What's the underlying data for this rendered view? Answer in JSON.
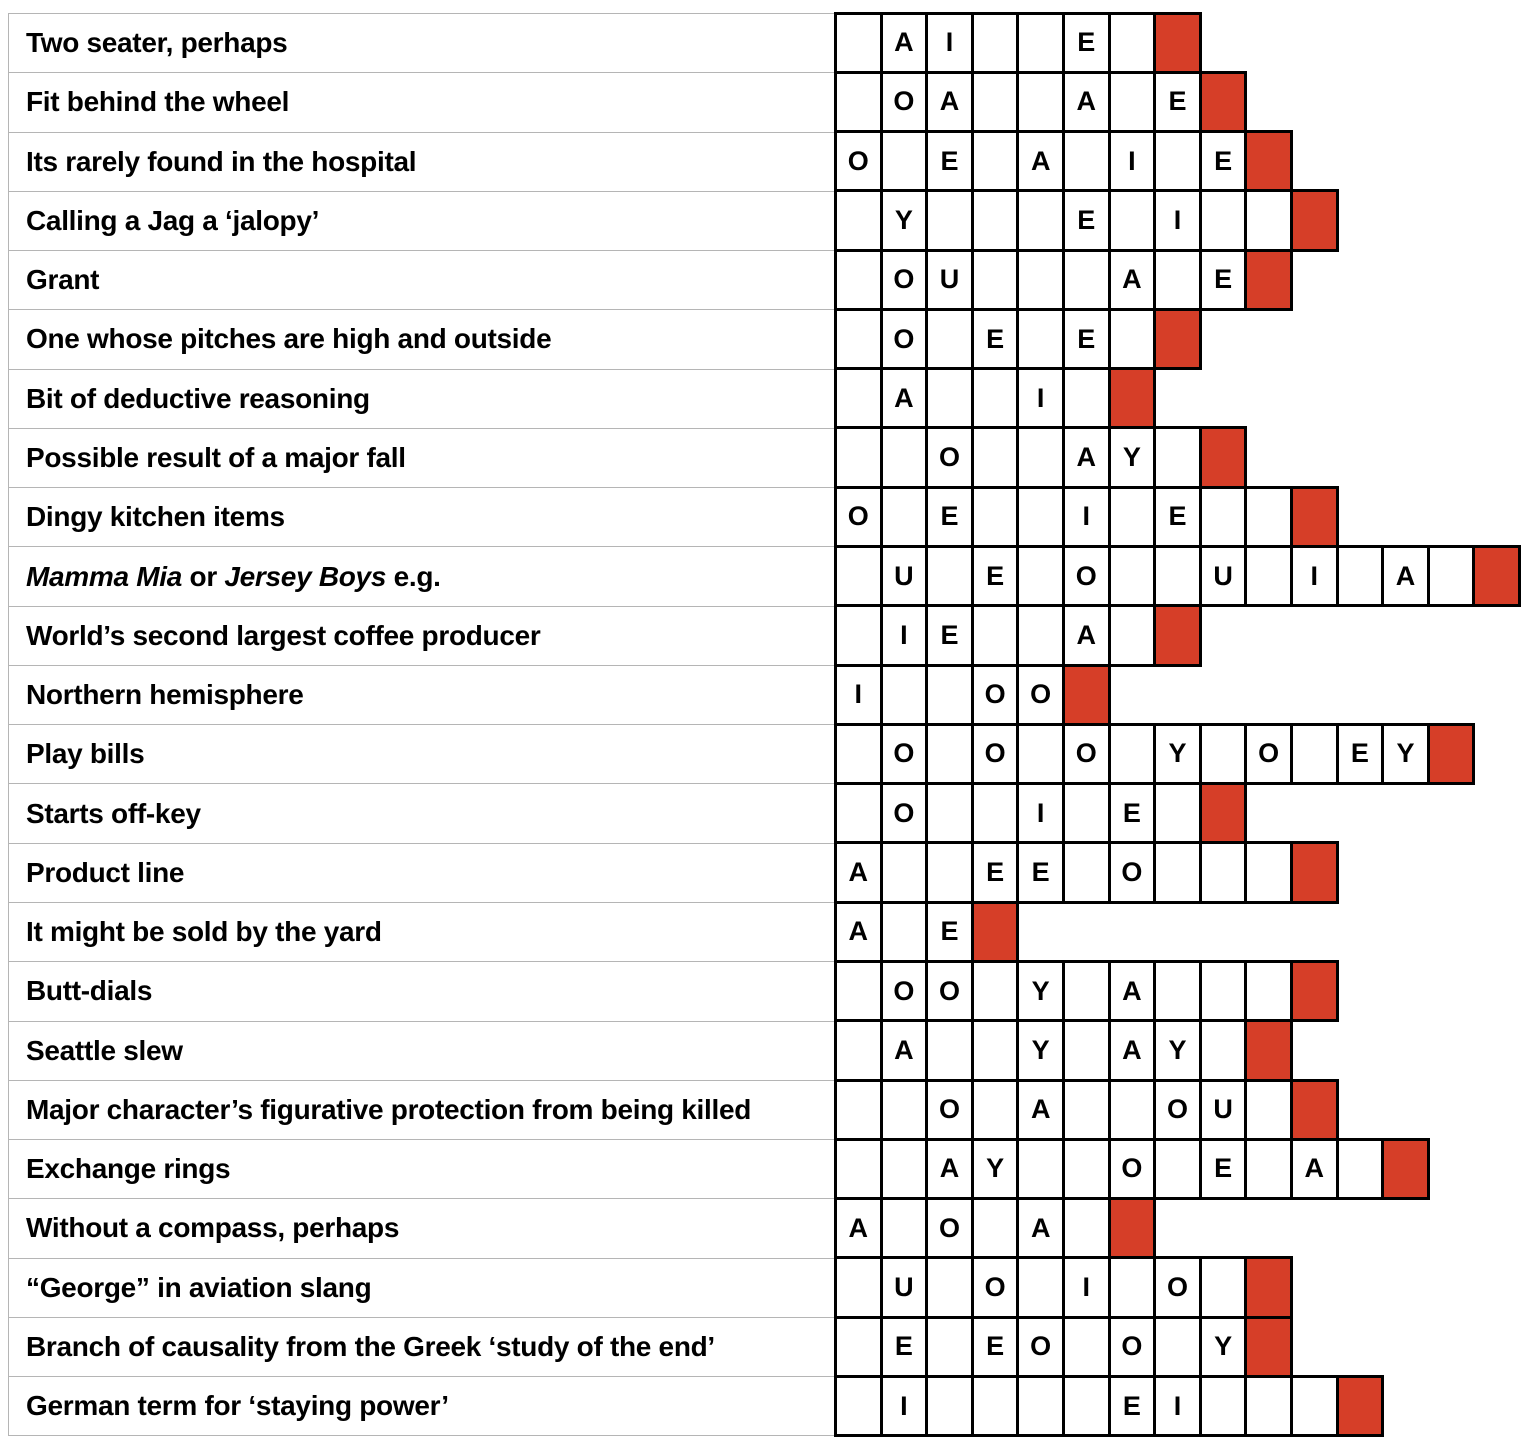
{
  "puzzle": {
    "description": "word puzzle grid: each row has a clue, answer cells with only vowels shown, and a red square marking the end of the answer",
    "colors": {
      "end_marker_red": "#d63e28",
      "cell_border": "#000000",
      "row_separator": "#b5b5b5",
      "letter_color": "#000000"
    },
    "rows": [
      {
        "clue_parts": [
          {
            "t": "Two seater, perhaps",
            "i": false
          }
        ],
        "white_cells": 7,
        "letters": {
          "2": "A",
          "3": "I",
          "6": "E"
        }
      },
      {
        "clue_parts": [
          {
            "t": "Fit behind the wheel",
            "i": false
          }
        ],
        "white_cells": 8,
        "letters": {
          "2": "O",
          "3": "A",
          "6": "A",
          "8": "E"
        }
      },
      {
        "clue_parts": [
          {
            "t": "Its rarely found in the hospital",
            "i": false
          }
        ],
        "white_cells": 9,
        "letters": {
          "1": "O",
          "3": "E",
          "5": "A",
          "7": "I",
          "9": "E"
        }
      },
      {
        "clue_parts": [
          {
            "t": "Calling a Jag a ‘jalopy’",
            "i": false
          }
        ],
        "white_cells": 10,
        "letters": {
          "2": "Y",
          "6": "E",
          "8": "I"
        }
      },
      {
        "clue_parts": [
          {
            "t": "Grant",
            "i": false
          }
        ],
        "white_cells": 9,
        "letters": {
          "2": "O",
          "3": "U",
          "7": "A",
          "9": "E"
        }
      },
      {
        "clue_parts": [
          {
            "t": "One whose pitches are high and outside",
            "i": false
          }
        ],
        "white_cells": 7,
        "letters": {
          "2": "O",
          "4": "E",
          "6": "E"
        }
      },
      {
        "clue_parts": [
          {
            "t": "Bit of deductive reasoning",
            "i": false
          }
        ],
        "white_cells": 6,
        "letters": {
          "2": "A",
          "5": "I"
        }
      },
      {
        "clue_parts": [
          {
            "t": "Possible result of a major fall",
            "i": false
          }
        ],
        "white_cells": 8,
        "letters": {
          "3": "O",
          "6": "A",
          "7": "Y"
        }
      },
      {
        "clue_parts": [
          {
            "t": "Dingy kitchen items",
            "i": false
          }
        ],
        "white_cells": 10,
        "letters": {
          "1": "O",
          "3": "E",
          "6": "I",
          "8": "E"
        }
      },
      {
        "clue_parts": [
          {
            "t": "Mamma Mia",
            "i": true
          },
          {
            "t": " or ",
            "i": false
          },
          {
            "t": "Jersey Boys",
            "i": true
          },
          {
            "t": " e.g.",
            "i": false
          }
        ],
        "white_cells": 14,
        "letters": {
          "2": "U",
          "4": "E",
          "6": "O",
          "9": "U",
          "11": "I",
          "13": "A"
        }
      },
      {
        "clue_parts": [
          {
            "t": "World’s second largest coffee producer",
            "i": false
          }
        ],
        "white_cells": 7,
        "letters": {
          "2": "I",
          "3": "E",
          "6": "A"
        }
      },
      {
        "clue_parts": [
          {
            "t": "Northern hemisphere",
            "i": false
          }
        ],
        "white_cells": 5,
        "letters": {
          "1": "I",
          "4": "O",
          "5": "O"
        }
      },
      {
        "clue_parts": [
          {
            "t": "Play bills",
            "i": false
          }
        ],
        "white_cells": 13,
        "letters": {
          "2": "O",
          "4": "O",
          "6": "O",
          "8": "Y",
          "10": "O",
          "12": "E",
          "13": "Y"
        }
      },
      {
        "clue_parts": [
          {
            "t": "Starts off-key",
            "i": false
          }
        ],
        "white_cells": 8,
        "letters": {
          "2": "O",
          "5": "I",
          "7": "E"
        }
      },
      {
        "clue_parts": [
          {
            "t": "Product line",
            "i": false
          }
        ],
        "white_cells": 10,
        "letters": {
          "1": "A",
          "4": "E",
          "5": "E",
          "7": "O"
        }
      },
      {
        "clue_parts": [
          {
            "t": "It might be sold by the yard",
            "i": false
          }
        ],
        "white_cells": 3,
        "letters": {
          "1": "A",
          "3": "E"
        }
      },
      {
        "clue_parts": [
          {
            "t": "Butt-dials",
            "i": false
          }
        ],
        "white_cells": 10,
        "letters": {
          "2": "O",
          "3": "O",
          "5": "Y",
          "7": "A"
        }
      },
      {
        "clue_parts": [
          {
            "t": "Seattle slew",
            "i": false
          }
        ],
        "white_cells": 9,
        "letters": {
          "2": "A",
          "5": "Y",
          "7": "A",
          "8": "Y"
        }
      },
      {
        "clue_parts": [
          {
            "t": "Major character’s figurative protection from being killed",
            "i": false
          }
        ],
        "white_cells": 10,
        "letters": {
          "3": "O",
          "5": "A",
          "8": "O",
          "9": "U"
        }
      },
      {
        "clue_parts": [
          {
            "t": "Exchange rings",
            "i": false
          }
        ],
        "white_cells": 12,
        "letters": {
          "3": "A",
          "4": "Y",
          "7": "O",
          "9": "E",
          "11": "A"
        }
      },
      {
        "clue_parts": [
          {
            "t": "Without a compass, perhaps",
            "i": false
          }
        ],
        "white_cells": 6,
        "letters": {
          "1": "A",
          "3": "O",
          "5": "A"
        }
      },
      {
        "clue_parts": [
          {
            "t": "“George” in aviation slang",
            "i": false
          }
        ],
        "white_cells": 9,
        "letters": {
          "2": "U",
          "4": "O",
          "6": "I",
          "8": "O"
        }
      },
      {
        "clue_parts": [
          {
            "t": "Branch of causality from the Greek ‘study of the end’",
            "i": false
          }
        ],
        "white_cells": 9,
        "letters": {
          "2": "E",
          "4": "E",
          "5": "O",
          "7": "O",
          "9": "Y"
        }
      },
      {
        "clue_parts": [
          {
            "t": "German term for ‘staying power’",
            "i": false
          }
        ],
        "white_cells": 11,
        "letters": {
          "2": "I",
          "7": "E",
          "8": "I"
        }
      }
    ]
  }
}
